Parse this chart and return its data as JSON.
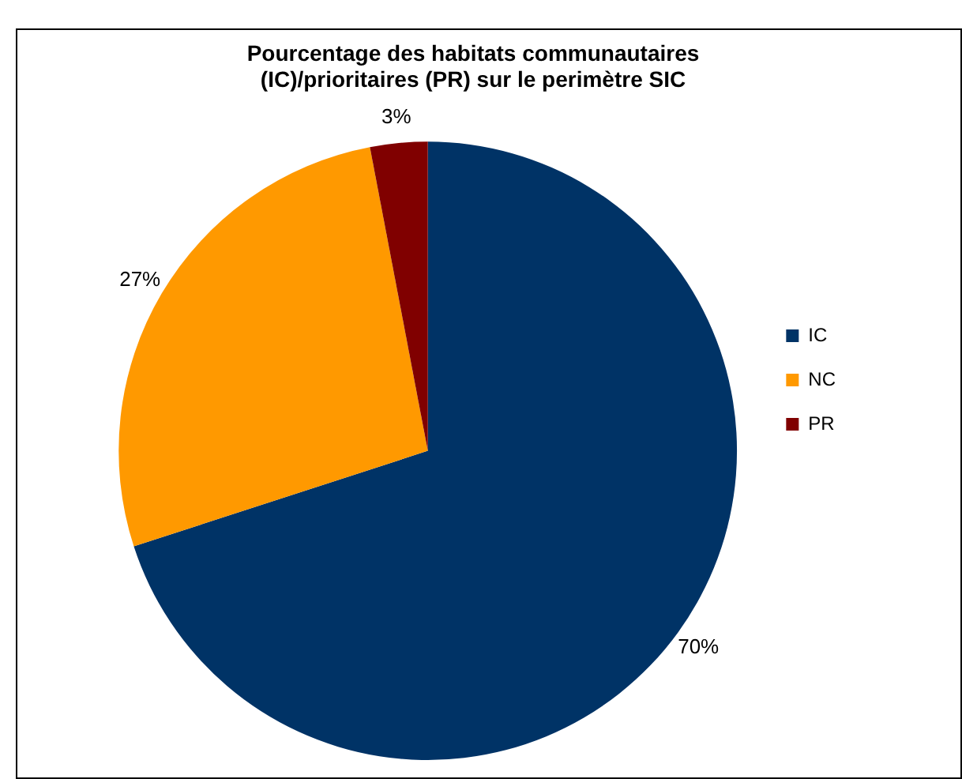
{
  "chart_data": {
    "type": "pie",
    "title": "Pourcentage des habitats communautaires\n(IC)/prioritaires (PR) sur le perimètre SIC",
    "categories": [
      "IC",
      "NC",
      "PR"
    ],
    "values": [
      70,
      27,
      3
    ],
    "colors": [
      "#003366",
      "#ff9900",
      "#800000"
    ],
    "value_labels": [
      "70%",
      "27%",
      "3%"
    ],
    "legend": "right"
  }
}
